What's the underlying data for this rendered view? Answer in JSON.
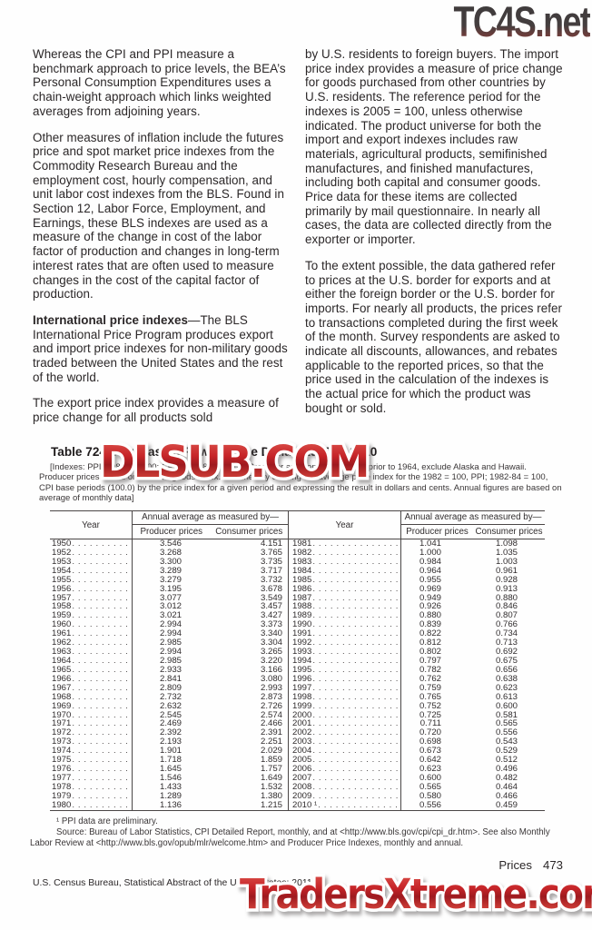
{
  "watermarks": {
    "top_right": "TC4S.net",
    "table": "DLSUB.COM",
    "bottom": "TradersXtreme.com",
    "red": "#c6262b"
  },
  "article": {
    "left": {
      "p1": "Whereas the CPI and PPI measure a benchmark approach to price levels, the BEA’s Personal Consumption Expenditures uses a chain-weight approach which links weighted averages from adjoining years.",
      "p2": "Other measures of inflation include the futures price and spot market price indexes from the Commodity Research Bureau and the employment cost, hourly compensation, and unit labor cost indexes from the BLS.  Found in Section 12, Labor Force, Employment, and Earnings, these BLS indexes are used as a measure of the change in cost of the labor factor of production and changes in long-term interest rates that are often used to measure changes in the cost of the capital factor of production.",
      "p3_bold": "International price indexes",
      "p3_rest": "—The BLS International Price Program produces export and import price indexes for non-military goods traded between the United States and the rest of the world.",
      "p4": "The export price index provides a measure of price change for all products sold"
    },
    "right": {
      "p1": "by U.S. residents to foreign buyers. The import price index provides a measure of price change for goods purchased from other countries by U.S. residents. The reference period for the indexes is 2005 = 100, unless otherwise indicated. The product universe for both the import and export indexes includes raw materials, agricultural products, semifinished manufactures, and finished manufactures, including both capital and consumer goods. Price data for these items are collected primarily by mail questionnaire. In nearly all cases, the data are collected directly from the exporter or importer.",
      "p2": "To the extent possible, the data gathered refer to prices at the U.S. border for exports and at either the foreign border or the U.S. border for imports. For nearly all products, the prices refer to transactions completed during the first week of the month. Survey respondents are asked to indicate all discounts, allowances, and rebates applicable to the reported prices, so that the price used in the calculation of the indexes is the actual price for which the product was bought or sold."
    }
  },
  "table": {
    "title": "Table 724. Purchasing Power of the Dollar: 1950 to 2010",
    "notes": "[Indexes: PPI, 1982 = $1.00; CPI, 1982-84 = $1.00. Producer and consumer prices prior to 1964, exclude Alaska and Hawaii. Producer prices based on finished goods index. Obtained by dividing the average price index for the 1982 = 100, PPI; 1982-84 = 100, CPI base periods (100.0) by the price index for a given period and expressing the result in dollars and cents. Annual figures are based on average of monthly data]",
    "headers": {
      "year": "Year",
      "group": "Annual average as measured by—",
      "producer": "Producer prices",
      "consumer": "Consumer prices"
    },
    "left_rows": [
      [
        "1950",
        "3.546",
        "4.151"
      ],
      [
        "1952",
        "3.268",
        "3.765"
      ],
      [
        "1953",
        "3.300",
        "3.735"
      ],
      [
        "1954",
        "3.289",
        "3.717"
      ],
      [
        "1955",
        "3.279",
        "3.732"
      ],
      [
        "1956",
        "3.195",
        "3.678"
      ],
      [
        "1957",
        "3.077",
        "3.549"
      ],
      [
        "1958",
        "3.012",
        "3.457"
      ],
      [
        "1959",
        "3.021",
        "3.427"
      ],
      [
        "1960",
        "2.994",
        "3.373"
      ],
      [
        "1961",
        "2.994",
        "3.340"
      ],
      [
        "1962",
        "2.985",
        "3.304"
      ],
      [
        "1963",
        "2.994",
        "3.265"
      ],
      [
        "1964",
        "2.985",
        "3.220"
      ],
      [
        "1965",
        "2.933",
        "3.166"
      ],
      [
        "1966",
        "2.841",
        "3.080"
      ],
      [
        "1967",
        "2.809",
        "2.993"
      ],
      [
        "1968",
        "2.732",
        "2.873"
      ],
      [
        "1969",
        "2.632",
        "2.726"
      ],
      [
        "1970",
        "2.545",
        "2.574"
      ],
      [
        "1971",
        "2.469",
        "2.466"
      ],
      [
        "1972",
        "2.392",
        "2.391"
      ],
      [
        "1973",
        "2.193",
        "2.251"
      ],
      [
        "1974",
        "1.901",
        "2.029"
      ],
      [
        "1975",
        "1.718",
        "1.859"
      ],
      [
        "1976",
        "1.645",
        "1.757"
      ],
      [
        "1977",
        "1.546",
        "1.649"
      ],
      [
        "1978",
        "1.433",
        "1.532"
      ],
      [
        "1979",
        "1.289",
        "1.380"
      ],
      [
        "1980",
        "1.136",
        "1.215"
      ]
    ],
    "right_rows": [
      [
        "1981",
        "1.041",
        "1.098"
      ],
      [
        "1982",
        "1.000",
        "1.035"
      ],
      [
        "1983",
        "0.984",
        "1.003"
      ],
      [
        "1984",
        "0.964",
        "0.961"
      ],
      [
        "1985",
        "0.955",
        "0.928"
      ],
      [
        "1986",
        "0.969",
        "0.913"
      ],
      [
        "1987",
        "0.949",
        "0.880"
      ],
      [
        "1988",
        "0.926",
        "0.846"
      ],
      [
        "1989",
        "0.880",
        "0.807"
      ],
      [
        "1990",
        "0.839",
        "0.766"
      ],
      [
        "1991",
        "0.822",
        "0.734"
      ],
      [
        "1992",
        "0.812",
        "0.713"
      ],
      [
        "1993",
        "0.802",
        "0.692"
      ],
      [
        "1994",
        "0.797",
        "0.675"
      ],
      [
        "1995",
        "0.782",
        "0.656"
      ],
      [
        "1996",
        "0.762",
        "0.638"
      ],
      [
        "1997",
        "0.759",
        "0.623"
      ],
      [
        "1998",
        "0.765",
        "0.613"
      ],
      [
        "1999",
        "0.752",
        "0.600"
      ],
      [
        "2000",
        "0.725",
        "0.581"
      ],
      [
        "2001",
        "0.711",
        "0.565"
      ],
      [
        "2002",
        "0.720",
        "0.556"
      ],
      [
        "2003",
        "0.698",
        "0.543"
      ],
      [
        "2004",
        "0.673",
        "0.529"
      ],
      [
        "2005",
        "0.642",
        "0.512"
      ],
      [
        "2006",
        "0.623",
        "0.496"
      ],
      [
        "2007",
        "0.600",
        "0.482"
      ],
      [
        "2008",
        "0.565",
        "0.464"
      ],
      [
        "2009",
        "0.580",
        "0.466"
      ],
      [
        "2010 ¹",
        "0.556",
        "0.459"
      ]
    ],
    "footnote": "¹ PPI data are preliminary.",
    "source": "Source: Bureau of Labor Statistics, CPI Detailed Report, monthly, and at <http://www.bls.gov/cpi/cpi_dr.htm>. See also Monthly Labor Review at <http://www.bls.gov/opub/mlr/welcome.htm> and Producer Price Indexes, monthly and annual."
  },
  "footer": {
    "section": "Prices",
    "page_number": "473",
    "credit": "U.S. Census Bureau, Statistical Abstract of the United States: 2011"
  }
}
